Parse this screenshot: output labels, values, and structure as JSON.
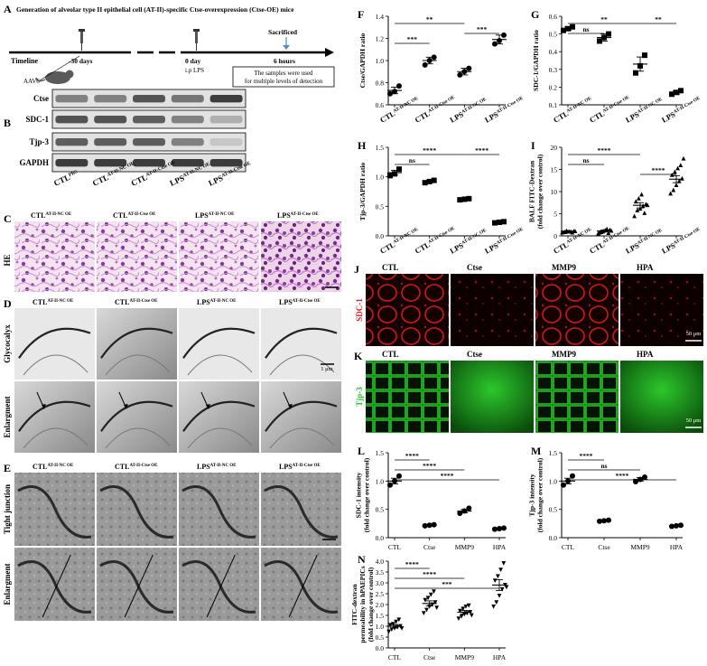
{
  "panels": {
    "A": {
      "letter": "A",
      "title": "Generation of  alveolar type II epithelial  cell (AT-II)-specific Ctse-overexpression (Ctse-OE) mice",
      "timeline_label": "Timeline",
      "t1": "-30 days",
      "t2": "0 day",
      "t2_sub": "i.p LPS",
      "t3": "6 hours",
      "sacrificed": "Sacrificed",
      "note_line1": "The samples were used",
      "note_line2": "for multiple levels of detection",
      "vector": "AAV6"
    },
    "B": {
      "letter": "B",
      "bands": [
        "Ctse",
        "SDC-1",
        "Tjp-3",
        "GAPDH"
      ],
      "lanes": [
        {
          "base": "CTL",
          "sup": "PBS"
        },
        {
          "base": "CTL",
          "sup": "AT-II-NC OE"
        },
        {
          "base": "CTL",
          "sup": "AT-II-Ctse OE"
        },
        {
          "base": "LPS",
          "sup": "AT-II-NC OE"
        },
        {
          "base": "LPS",
          "sup": "AT-II-Ctse OE"
        }
      ]
    },
    "C": {
      "letter": "C",
      "row_label": "HE",
      "cols": [
        {
          "base": "CTL",
          "sup": "AT-II-NC OE"
        },
        {
          "base": "CTL",
          "sup": "AT-II-Ctse OE"
        },
        {
          "base": "LPS",
          "sup": "AT-II-NC OE"
        },
        {
          "base": "LPS",
          "sup": "AT-II-Ctse OE"
        }
      ]
    },
    "D": {
      "letter": "D",
      "rows": [
        "Glycocalyx",
        "Enlargment"
      ],
      "scale": "1 μm",
      "cols": [
        {
          "base": "CTL",
          "sup": "AT-II-NC OE"
        },
        {
          "base": "CTL",
          "sup": "AT-II-Ctse OE"
        },
        {
          "base": "LPS",
          "sup": "AT-II-NC OE"
        },
        {
          "base": "LPS",
          "sup": "AT-II-Ctse OE"
        }
      ]
    },
    "E": {
      "letter": "E",
      "rows": [
        "Tight junction",
        "Enlargment"
      ],
      "cols": [
        {
          "base": "CTL",
          "sup": "AT-II-NC OE"
        },
        {
          "base": "CTL",
          "sup": "AT-II-Ctse OE"
        },
        {
          "base": "LPS",
          "sup": "AT-II-NC OE"
        },
        {
          "base": "LPS",
          "sup": "AT-II-Ctse OE"
        }
      ]
    },
    "J": {
      "letter": "J",
      "row_label": "SDC-1",
      "cols": [
        "CTL",
        "Ctse",
        "MMP9",
        "HPA"
      ],
      "scale": "50 μm",
      "color": "#e01818"
    },
    "K": {
      "letter": "K",
      "row_label": "Tjp-3",
      "cols": [
        "CTL",
        "Ctse",
        "MMP9",
        "HPA"
      ],
      "scale": "50 μm",
      "color": "#1ec81e"
    }
  },
  "xgroups": {
    "mouse": [
      {
        "base": "CTL",
        "sup": "AT-II-NC OE"
      },
      {
        "base": "CTL",
        "sup": "AT-II-Ctse OE"
      },
      {
        "base": "LPS",
        "sup": "AT-II-NC OE"
      },
      {
        "base": "LPS",
        "sup": "AT-II-Ctse OE"
      }
    ],
    "cell": [
      "CTL",
      "Ctse",
      "MMP9",
      "HPA"
    ]
  },
  "chart_data": [
    {
      "letter": "F",
      "type": "scatter",
      "ylabel": "Ctse/GAPDH ratio",
      "xgroup": "mouse",
      "ylim": [
        0.6,
        1.4
      ],
      "yticks": [
        "0.6",
        "0.8",
        "1.0",
        "1.2",
        "1.4"
      ],
      "means": [
        0.73,
        1.0,
        0.9,
        1.19
      ],
      "sems": [
        0.03,
        0.03,
        0.03,
        0.04
      ],
      "points": [
        [
          0.7,
          0.72,
          0.77
        ],
        [
          0.96,
          1.0,
          1.03
        ],
        [
          0.87,
          0.9,
          0.93
        ],
        [
          1.15,
          1.18,
          1.23
        ]
      ],
      "marker": "circle",
      "brackets": [
        {
          "from": 0,
          "to": 2,
          "label": "**",
          "level": 0
        },
        {
          "from": 2,
          "to": 3,
          "label": "***",
          "level": 1
        },
        {
          "from": 0,
          "to": 1,
          "label": "***",
          "level": 2
        }
      ]
    },
    {
      "letter": "G",
      "type": "scatter",
      "ylabel": "SDC-1/GAPDH ratio",
      "xgroup": "mouse",
      "ylim": [
        0.1,
        0.6
      ],
      "yticks": [
        "0.1",
        "0.2",
        "0.3",
        "0.4",
        "0.5",
        "0.6"
      ],
      "means": [
        0.53,
        0.48,
        0.33,
        0.17
      ],
      "sems": [
        0.01,
        0.02,
        0.04,
        0.01
      ],
      "points": [
        [
          0.52,
          0.53,
          0.54
        ],
        [
          0.46,
          0.48,
          0.5
        ],
        [
          0.28,
          0.32,
          0.38
        ],
        [
          0.16,
          0.17,
          0.18
        ]
      ],
      "marker": "square",
      "brackets": [
        {
          "from": 0,
          "to": 2,
          "label": "**",
          "level": 0
        },
        {
          "from": 2,
          "to": 3,
          "label": "**",
          "level": 0
        },
        {
          "from": 0,
          "to": 1,
          "label": "ns",
          "level": 1
        }
      ]
    },
    {
      "letter": "H",
      "type": "scatter",
      "ylabel": "Tjp-3/GAPDH ratio",
      "xgroup": "mouse",
      "ylim": [
        0.0,
        1.5
      ],
      "yticks": [
        "0.0",
        "0.5",
        "1.0",
        "1.5"
      ],
      "means": [
        1.07,
        0.92,
        0.62,
        0.23
      ],
      "sems": [
        0.04,
        0.02,
        0.01,
        0.01
      ],
      "points": [
        [
          1.02,
          1.05,
          1.13
        ],
        [
          0.9,
          0.92,
          0.94
        ],
        [
          0.61,
          0.62,
          0.63
        ],
        [
          0.22,
          0.23,
          0.24
        ]
      ],
      "marker": "square",
      "brackets": [
        {
          "from": 0,
          "to": 2,
          "label": "****",
          "level": 0
        },
        {
          "from": 2,
          "to": 3,
          "label": "****",
          "level": 0
        },
        {
          "from": 0,
          "to": 1,
          "label": "ns",
          "level": 1
        }
      ]
    },
    {
      "letter": "I",
      "type": "scatter",
      "ylabel": "BALF FITC-Dextran",
      "ylabel2": "(fold change over control)",
      "xgroup": "mouse",
      "ylim": [
        0,
        20
      ],
      "yticks": [
        "0",
        "5",
        "10",
        "15",
        "20"
      ],
      "means": [
        1.0,
        1.1,
        6.9,
        12.8
      ],
      "sems": [
        0.1,
        0.2,
        0.6,
        0.8
      ],
      "points": [
        [
          0.8,
          0.9,
          1.0,
          1.0,
          1.1,
          0.9,
          1.2,
          1.0,
          0.8,
          1.1
        ],
        [
          0.6,
          0.9,
          1.2,
          1.6,
          1.4,
          0.8,
          1.0,
          1.3,
          0.7,
          1.2
        ],
        [
          4.5,
          5.8,
          6.2,
          6.8,
          7.2,
          7.8,
          8.5,
          9.4,
          5.2,
          7.0
        ],
        [
          9.6,
          10.4,
          11.5,
          12.4,
          13.0,
          13.8,
          14.5,
          15.3,
          16.0,
          17.5
        ]
      ],
      "marker": "triangle",
      "brackets": [
        {
          "from": 0,
          "to": 2,
          "label": "****",
          "level": 0
        },
        {
          "from": 0,
          "to": 1,
          "label": "ns",
          "level": 1
        },
        {
          "from": 2,
          "to": 3,
          "label": "****",
          "level": 2
        }
      ]
    },
    {
      "letter": "L",
      "type": "scatter",
      "ylabel": "SDC-1 intensity",
      "ylabel2": "(fold change over control)",
      "xgroup": "cell",
      "ylim": [
        0.0,
        1.5
      ],
      "yticks": [
        "0.0",
        "0.5",
        "1.0",
        "1.5"
      ],
      "means": [
        1.0,
        0.22,
        0.47,
        0.16
      ],
      "sems": [
        0.05,
        0.01,
        0.03,
        0.01
      ],
      "points": [
        [
          0.93,
          1.0,
          1.09
        ],
        [
          0.21,
          0.22,
          0.23
        ],
        [
          0.43,
          0.47,
          0.52
        ],
        [
          0.15,
          0.16,
          0.17
        ]
      ],
      "marker": "circle",
      "brackets": [
        {
          "from": 0,
          "to": 1,
          "label": "****",
          "level": 0
        },
        {
          "from": 0,
          "to": 2,
          "label": "****",
          "level": 1
        },
        {
          "from": 0,
          "to": 3,
          "label": "****",
          "level": 2
        }
      ]
    },
    {
      "letter": "M",
      "type": "scatter",
      "ylabel": "Tjp-3 intensity",
      "ylabel2": "(fold change over control)",
      "xgroup": "cell",
      "ylim": [
        0.0,
        1.5
      ],
      "yticks": [
        "0.0",
        "0.5",
        "1.0",
        "1.5"
      ],
      "means": [
        1.0,
        0.3,
        1.03,
        0.21
      ],
      "sems": [
        0.05,
        0.01,
        0.03,
        0.01
      ],
      "points": [
        [
          0.93,
          1.0,
          1.09
        ],
        [
          0.29,
          0.3,
          0.31
        ],
        [
          0.99,
          1.03,
          1.07
        ],
        [
          0.2,
          0.21,
          0.22
        ]
      ],
      "marker": "circle",
      "brackets": [
        {
          "from": 0,
          "to": 1,
          "label": "****",
          "level": 0
        },
        {
          "from": 0,
          "to": 2,
          "label": "ns",
          "level": 1
        },
        {
          "from": 0,
          "to": 3,
          "label": "****",
          "level": 2
        }
      ]
    },
    {
      "letter": "N",
      "type": "scatter",
      "ylabel": "FITC-dextran",
      "ylabel2": "permeability in hPAEPICs",
      "ylabel3": "(fold change over control)",
      "xgroup": "cell",
      "ylim": [
        0.0,
        4.0
      ],
      "yticks": [
        "0.0",
        "0.5",
        "1.0",
        "1.5",
        "2.0",
        "2.5",
        "3.0",
        "3.5",
        "4.0"
      ],
      "means": [
        1.0,
        2.05,
        1.65,
        2.9
      ],
      "sems": [
        0.08,
        0.12,
        0.08,
        0.25
      ],
      "points": [
        [
          0.75,
          0.85,
          0.9,
          0.95,
          1.0,
          1.05,
          1.1,
          1.2,
          1.3,
          0.9
        ],
        [
          1.6,
          1.75,
          1.9,
          2.0,
          2.1,
          2.2,
          2.3,
          2.45,
          2.6,
          1.85
        ],
        [
          1.35,
          1.45,
          1.55,
          1.6,
          1.65,
          1.7,
          1.8,
          1.9,
          1.95,
          1.5
        ],
        [
          1.9,
          2.1,
          2.4,
          2.7,
          2.9,
          3.1,
          3.3,
          3.6,
          3.9,
          2.8
        ]
      ],
      "marker": "triangle-down",
      "brackets": [
        {
          "from": 0,
          "to": 1,
          "label": "****",
          "level": 0
        },
        {
          "from": 0,
          "to": 2,
          "label": "****",
          "level": 1
        },
        {
          "from": 0,
          "to": 3,
          "label": "***",
          "level": 2
        }
      ]
    }
  ]
}
